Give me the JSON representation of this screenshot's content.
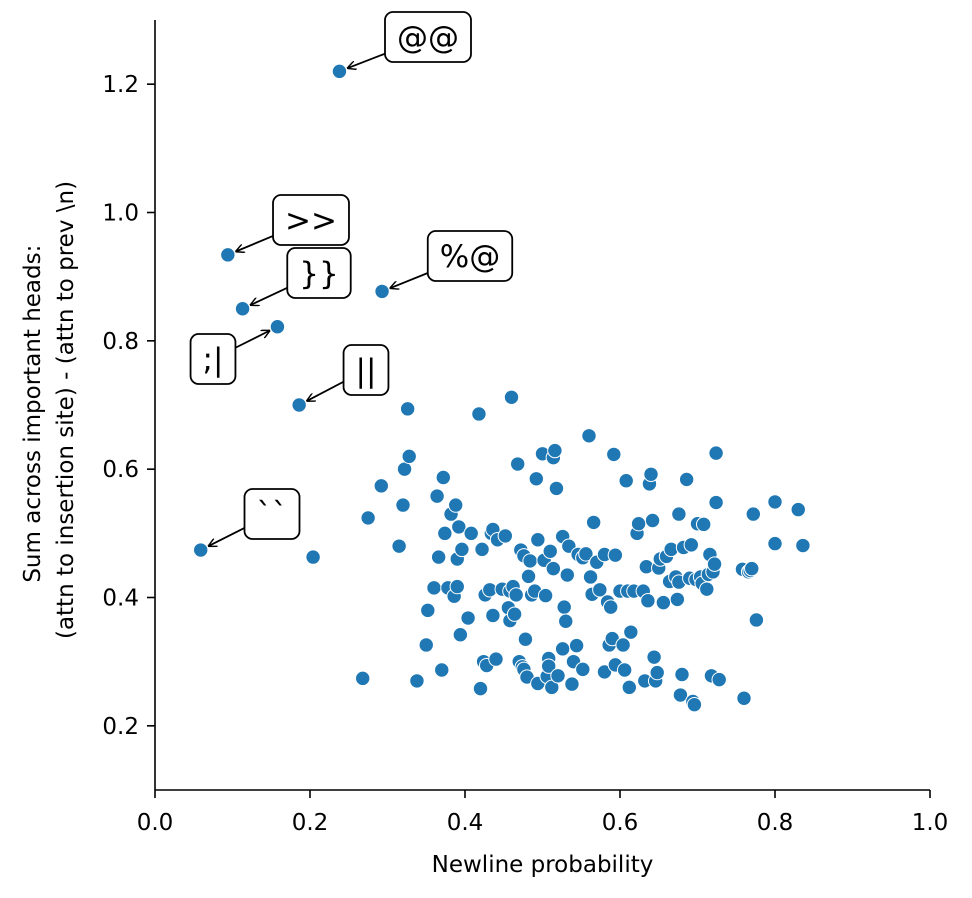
{
  "chart_data": {
    "type": "scatter",
    "xlabel": "Newline probability",
    "ylabel_lines": [
      "Sum across important heads:",
      "(attn to insertion site) - (attn to prev \\n)"
    ],
    "xlim": [
      0.0,
      1.0
    ],
    "ylim": [
      0.1,
      1.3
    ],
    "xticks": [
      "0.0",
      "0.2",
      "0.4",
      "0.6",
      "0.8",
      "1.0"
    ],
    "yticks": [
      "0.2",
      "0.4",
      "0.6",
      "0.8",
      "1.0",
      "1.2"
    ],
    "grid": false,
    "marker_color": "#1f77b4",
    "annotations": [
      {
        "label": "@@",
        "x": 0.238,
        "y": 1.22
      },
      {
        "label": ">>",
        "x": 0.094,
        "y": 0.934
      },
      {
        "label": "}}",
        "x": 0.113,
        "y": 0.85
      },
      {
        "label": "%@",
        "x": 0.293,
        "y": 0.877
      },
      {
        "label": ";|",
        "x": 0.158,
        "y": 0.822
      },
      {
        "label": "||",
        "x": 0.186,
        "y": 0.7
      },
      {
        "label": "``",
        "x": 0.059,
        "y": 0.474
      }
    ],
    "points": [
      [
        0.238,
        1.22
      ],
      [
        0.094,
        0.934
      ],
      [
        0.113,
        0.85
      ],
      [
        0.293,
        0.877
      ],
      [
        0.158,
        0.822
      ],
      [
        0.186,
        0.7
      ],
      [
        0.059,
        0.474
      ],
      [
        0.204,
        0.463
      ],
      [
        0.268,
        0.274
      ],
      [
        0.275,
        0.524
      ],
      [
        0.292,
        0.574
      ],
      [
        0.315,
        0.48
      ],
      [
        0.32,
        0.544
      ],
      [
        0.322,
        0.6
      ],
      [
        0.326,
        0.694
      ],
      [
        0.328,
        0.62
      ],
      [
        0.338,
        0.27
      ],
      [
        0.35,
        0.326
      ],
      [
        0.352,
        0.38
      ],
      [
        0.36,
        0.415
      ],
      [
        0.364,
        0.558
      ],
      [
        0.366,
        0.463
      ],
      [
        0.37,
        0.287
      ],
      [
        0.372,
        0.587
      ],
      [
        0.374,
        0.5
      ],
      [
        0.378,
        0.415
      ],
      [
        0.382,
        0.53
      ],
      [
        0.386,
        0.402
      ],
      [
        0.388,
        0.544
      ],
      [
        0.39,
        0.417
      ],
      [
        0.39,
        0.46
      ],
      [
        0.392,
        0.51
      ],
      [
        0.394,
        0.342
      ],
      [
        0.396,
        0.475
      ],
      [
        0.404,
        0.368
      ],
      [
        0.408,
        0.5
      ],
      [
        0.418,
        0.686
      ],
      [
        0.42,
        0.258
      ],
      [
        0.422,
        0.475
      ],
      [
        0.424,
        0.3
      ],
      [
        0.426,
        0.404
      ],
      [
        0.428,
        0.294
      ],
      [
        0.432,
        0.412
      ],
      [
        0.434,
        0.5
      ],
      [
        0.436,
        0.372
      ],
      [
        0.436,
        0.506
      ],
      [
        0.44,
        0.304
      ],
      [
        0.442,
        0.49
      ],
      [
        0.448,
        0.413
      ],
      [
        0.452,
        0.496
      ],
      [
        0.456,
        0.384
      ],
      [
        0.458,
        0.41
      ],
      [
        0.458,
        0.364
      ],
      [
        0.46,
        0.712
      ],
      [
        0.462,
        0.417
      ],
      [
        0.464,
        0.374
      ],
      [
        0.466,
        0.404
      ],
      [
        0.468,
        0.608
      ],
      [
        0.47,
        0.3
      ],
      [
        0.472,
        0.474
      ],
      [
        0.474,
        0.292
      ],
      [
        0.476,
        0.465
      ],
      [
        0.476,
        0.288
      ],
      [
        0.478,
        0.335
      ],
      [
        0.48,
        0.276
      ],
      [
        0.482,
        0.433
      ],
      [
        0.484,
        0.457
      ],
      [
        0.486,
        0.404
      ],
      [
        0.49,
        0.41
      ],
      [
        0.492,
        0.585
      ],
      [
        0.494,
        0.49
      ],
      [
        0.494,
        0.266
      ],
      [
        0.5,
        0.624
      ],
      [
        0.502,
        0.458
      ],
      [
        0.504,
        0.403
      ],
      [
        0.506,
        0.277
      ],
      [
        0.508,
        0.305
      ],
      [
        0.508,
        0.293
      ],
      [
        0.51,
        0.472
      ],
      [
        0.512,
        0.26
      ],
      [
        0.514,
        0.618
      ],
      [
        0.514,
        0.445
      ],
      [
        0.516,
        0.629
      ],
      [
        0.518,
        0.57
      ],
      [
        0.52,
        0.278
      ],
      [
        0.526,
        0.495
      ],
      [
        0.526,
        0.32
      ],
      [
        0.528,
        0.385
      ],
      [
        0.53,
        0.363
      ],
      [
        0.532,
        0.435
      ],
      [
        0.534,
        0.48
      ],
      [
        0.538,
        0.265
      ],
      [
        0.54,
        0.3
      ],
      [
        0.544,
        0.325
      ],
      [
        0.546,
        0.467
      ],
      [
        0.552,
        0.462
      ],
      [
        0.552,
        0.288
      ],
      [
        0.556,
        0.468
      ],
      [
        0.56,
        0.652
      ],
      [
        0.562,
        0.432
      ],
      [
        0.564,
        0.405
      ],
      [
        0.566,
        0.517
      ],
      [
        0.57,
        0.455
      ],
      [
        0.574,
        0.412
      ],
      [
        0.58,
        0.284
      ],
      [
        0.58,
        0.467
      ],
      [
        0.584,
        0.393
      ],
      [
        0.586,
        0.326
      ],
      [
        0.588,
        0.385
      ],
      [
        0.59,
        0.336
      ],
      [
        0.592,
        0.623
      ],
      [
        0.594,
        0.295
      ],
      [
        0.594,
        0.466
      ],
      [
        0.6,
        0.41
      ],
      [
        0.604,
        0.326
      ],
      [
        0.606,
        0.287
      ],
      [
        0.608,
        0.582
      ],
      [
        0.61,
        0.41
      ],
      [
        0.612,
        0.26
      ],
      [
        0.614,
        0.346
      ],
      [
        0.618,
        0.41
      ],
      [
        0.622,
        0.5
      ],
      [
        0.624,
        0.515
      ],
      [
        0.63,
        0.41
      ],
      [
        0.632,
        0.27
      ],
      [
        0.634,
        0.448
      ],
      [
        0.636,
        0.395
      ],
      [
        0.638,
        0.577
      ],
      [
        0.64,
        0.592
      ],
      [
        0.642,
        0.52
      ],
      [
        0.644,
        0.307
      ],
      [
        0.646,
        0.27
      ],
      [
        0.648,
        0.283
      ],
      [
        0.65,
        0.446
      ],
      [
        0.652,
        0.46
      ],
      [
        0.656,
        0.392
      ],
      [
        0.66,
        0.464
      ],
      [
        0.664,
        0.425
      ],
      [
        0.666,
        0.475
      ],
      [
        0.672,
        0.432
      ],
      [
        0.674,
        0.397
      ],
      [
        0.676,
        0.53
      ],
      [
        0.676,
        0.424
      ],
      [
        0.678,
        0.248
      ],
      [
        0.68,
        0.28
      ],
      [
        0.682,
        0.478
      ],
      [
        0.686,
        0.584
      ],
      [
        0.69,
        0.43
      ],
      [
        0.692,
        0.482
      ],
      [
        0.694,
        0.238
      ],
      [
        0.696,
        0.233
      ],
      [
        0.698,
        0.428
      ],
      [
        0.7,
        0.515
      ],
      [
        0.704,
        0.432
      ],
      [
        0.706,
        0.422
      ],
      [
        0.708,
        0.514
      ],
      [
        0.712,
        0.413
      ],
      [
        0.714,
        0.436
      ],
      [
        0.716,
        0.467
      ],
      [
        0.718,
        0.278
      ],
      [
        0.72,
        0.44
      ],
      [
        0.722,
        0.452
      ],
      [
        0.724,
        0.548
      ],
      [
        0.724,
        0.625
      ],
      [
        0.728,
        0.272
      ],
      [
        0.758,
        0.444
      ],
      [
        0.76,
        0.243
      ],
      [
        0.766,
        0.44
      ],
      [
        0.768,
        0.442
      ],
      [
        0.77,
        0.445
      ],
      [
        0.772,
        0.53
      ],
      [
        0.776,
        0.365
      ],
      [
        0.8,
        0.484
      ],
      [
        0.8,
        0.549
      ],
      [
        0.83,
        0.537
      ],
      [
        0.836,
        0.481
      ]
    ]
  }
}
